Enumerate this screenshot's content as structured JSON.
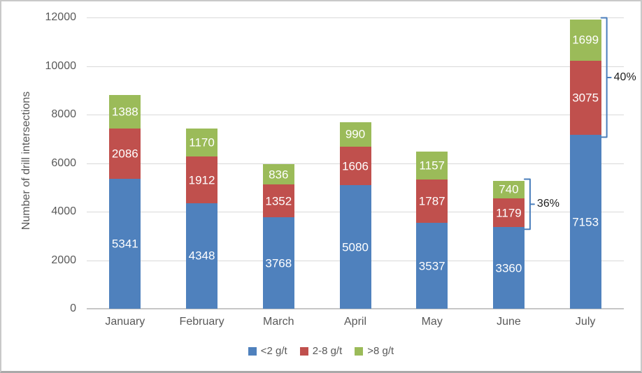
{
  "chart_data": {
    "type": "bar",
    "stacked": true,
    "title": "",
    "xlabel": "",
    "ylabel": "Number of drill intersections",
    "categories": [
      "January",
      "February",
      "March",
      "April",
      "May",
      "June",
      "July"
    ],
    "series": [
      {
        "name": "<2 g/t",
        "color": "#4f81bd",
        "values": [
          5341,
          4348,
          3768,
          5080,
          3537,
          3360,
          7153
        ]
      },
      {
        "name": "2-8 g/t",
        "color": "#c0504d",
        "values": [
          2086,
          1912,
          1352,
          1606,
          1787,
          1179,
          3075
        ]
      },
      {
        "name": ">8 g/t",
        "color": "#9bbb59",
        "values": [
          1388,
          1170,
          836,
          990,
          1157,
          740,
          1699
        ]
      }
    ],
    "ylim": [
      0,
      12000
    ],
    "ytick_step": 2000,
    "ytick_labels": [
      "0",
      "2000",
      "4000",
      "6000",
      "8000",
      "10000",
      "12000"
    ],
    "grid": true,
    "legend_position": "bottom",
    "data_labels": "inside-center-white",
    "annotations": [
      {
        "category": "June",
        "label": "36%",
        "spans_series": [
          "2-8 g/t",
          ">8 g/t"
        ]
      },
      {
        "category": "July",
        "label": "40%",
        "spans_series": [
          "2-8 g/t",
          ">8 g/t"
        ]
      }
    ],
    "annotation_color": "#4a7ebb"
  },
  "colors": {
    "gridline": "#d9d9d9",
    "axis_line": "#c6c6c6",
    "axis_text": "#595959",
    "data_label_text": "#ffffff",
    "annotation_text": "#1f1f1f",
    "background": "#ffffff"
  }
}
